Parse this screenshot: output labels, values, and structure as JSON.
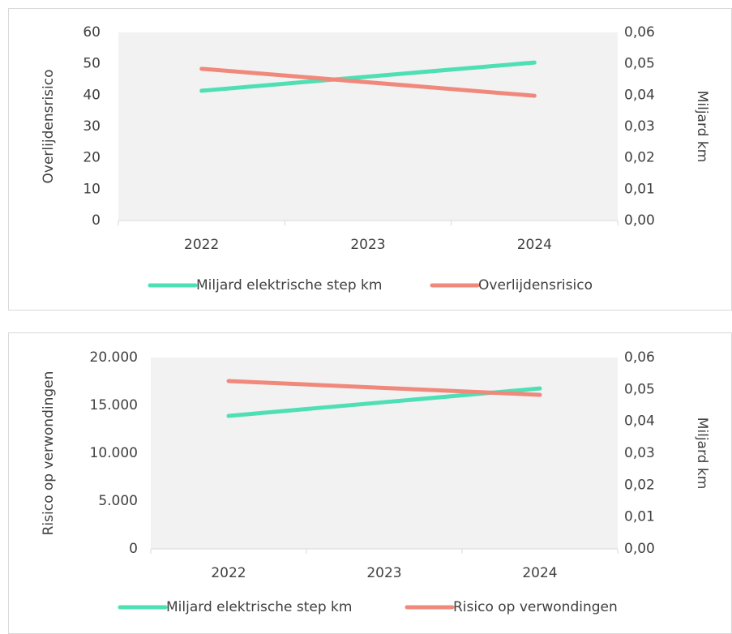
{
  "chart_data": [
    {
      "type": "line",
      "y_label": "Overlijdensrisico",
      "y2_label": "Miljard km",
      "categories": [
        "2022",
        "2023",
        "2024"
      ],
      "series": [
        {
          "name": "Miljard elektrische step km",
          "color": "#4fdfb5",
          "axis": "y2",
          "values": [
            0.0414,
            0.0459,
            0.0504
          ]
        },
        {
          "name": "Overlijdensrisico",
          "color": "#f0897c",
          "values": [
            48.4,
            44.1,
            39.8
          ]
        }
      ],
      "ylim": [
        0,
        60
      ],
      "yticks": [
        0,
        10,
        20,
        30,
        40,
        50,
        60
      ],
      "y2lim": [
        0,
        0.06
      ],
      "y2ticks": [
        {
          "value": 0,
          "label": "0,00"
        },
        {
          "value": 0.01,
          "label": "0,01"
        },
        {
          "value": 0.02,
          "label": "0,02"
        },
        {
          "value": 0.03,
          "label": "0,03"
        },
        {
          "value": 0.04,
          "label": "0,04"
        },
        {
          "value": 0.05,
          "label": "0,05"
        },
        {
          "value": 0.06,
          "label": "0,06"
        }
      ]
    },
    {
      "type": "line",
      "y_label": "Risico op verwondingen",
      "y2_label": "Miljard km",
      "categories": [
        "2022",
        "2023",
        "2024"
      ],
      "series": [
        {
          "name": "Miljard elektrische step km",
          "color": "#4fdfb5",
          "axis": "y2",
          "values": [
            0.0417,
            0.046,
            0.0503
          ]
        },
        {
          "name": "Risico op verwondingen",
          "color": "#f0897c",
          "values": [
            17542,
            16822,
            16102
          ]
        }
      ],
      "ylim": [
        0,
        20000
      ],
      "yticks": [
        0,
        {
          "value": 5000,
          "label": "5.000"
        },
        {
          "value": 10000,
          "label": "10.000"
        },
        {
          "value": 15000,
          "label": "15.000"
        },
        {
          "value": 20000,
          "label": "20.000"
        }
      ],
      "y2lim": [
        0,
        0.06
      ],
      "y2ticks": [
        {
          "value": 0,
          "label": "0,00"
        },
        {
          "value": 0.01,
          "label": "0,01"
        },
        {
          "value": 0.02,
          "label": "0,02"
        },
        {
          "value": 0.03,
          "label": "0,03"
        },
        {
          "value": 0.04,
          "label": "0,04"
        },
        {
          "value": 0.05,
          "label": "0,05"
        },
        {
          "value": 0.06,
          "label": "0,06"
        }
      ]
    }
  ]
}
